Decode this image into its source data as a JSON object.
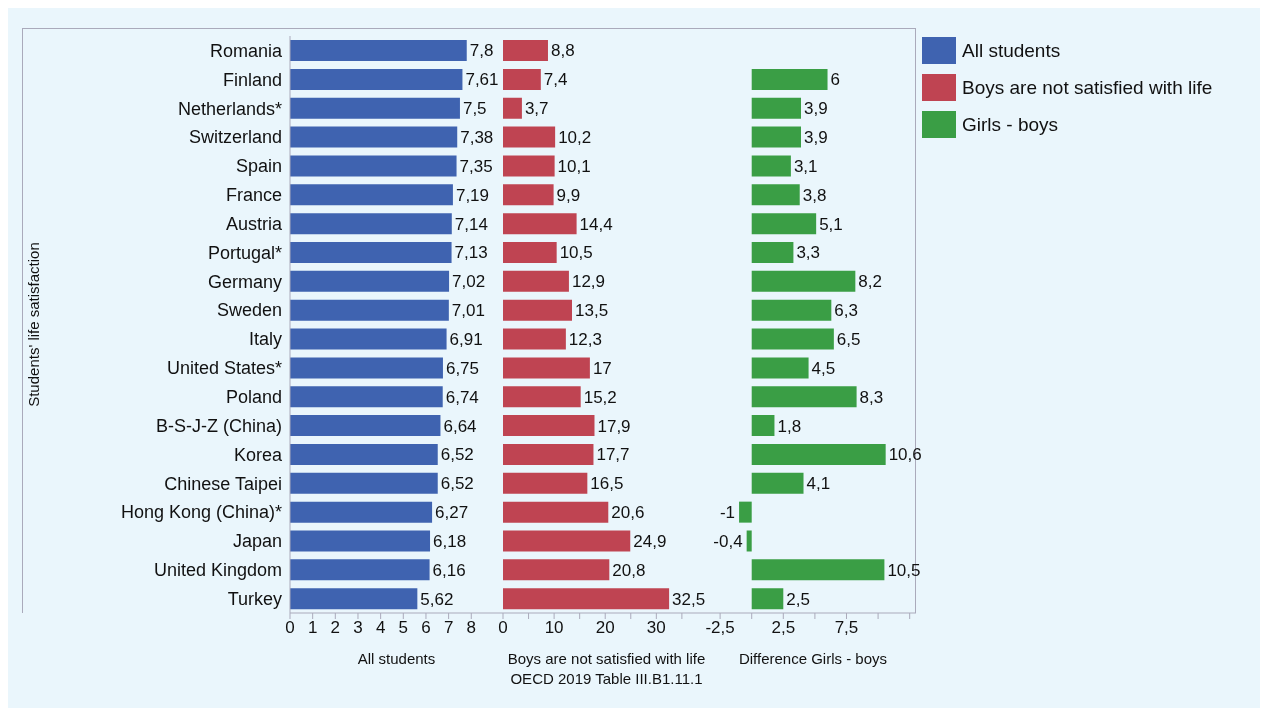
{
  "chart_data": [
    {
      "type": "bar",
      "orientation": "horizontal",
      "categories": [
        "Romania",
        "Finland",
        "Netherlands*",
        "Switzerland",
        "Spain",
        "France",
        "Austria",
        "Portugal*",
        "Germany",
        "Sweden",
        "Italy",
        "United States*",
        "Poland",
        "B-S-J-Z (China)",
        "Korea",
        "Chinese Taipei",
        "Hong Kong (China)*",
        "Japan",
        "United Kingdom",
        "Turkey"
      ],
      "series": [
        {
          "name": "All students",
          "color": "#3f63b0",
          "values": [
            7.8,
            7.61,
            7.5,
            7.38,
            7.35,
            7.19,
            7.14,
            7.13,
            7.02,
            7.01,
            6.91,
            6.75,
            6.74,
            6.64,
            6.52,
            6.52,
            6.27,
            6.18,
            6.16,
            5.62
          ],
          "value_labels": [
            "7,8",
            "7,61",
            "7,5",
            "7,38",
            "7,35",
            "7,19",
            "7,14",
            "7,13",
            "7,02",
            "7,01",
            "6,91",
            "6,75",
            "6,74",
            "6,64",
            "6,52",
            "6,52",
            "6,27",
            "6,18",
            "6,16",
            "5,62"
          ]
        }
      ],
      "xlim": [
        0,
        9.4
      ],
      "xticks": [
        0,
        1,
        2,
        3,
        4,
        5,
        6,
        7,
        8
      ],
      "xlabel": "All students",
      "ylabel": "Students' life satisfaction",
      "legend": "right"
    },
    {
      "type": "bar",
      "orientation": "horizontal",
      "series": [
        {
          "name": "Boys are not satisfied with life",
          "color": "#bf4452",
          "values": [
            8.8,
            7.4,
            3.7,
            10.2,
            10.1,
            9.9,
            14.4,
            10.5,
            12.9,
            13.5,
            12.3,
            17,
            15.2,
            17.9,
            17.7,
            16.5,
            20.6,
            24.9,
            20.8,
            32.5
          ],
          "value_labels": [
            "8,8",
            "7,4",
            "3,7",
            "10,2",
            "10,1",
            "9,9",
            "14,4",
            "10,5",
            "12,9",
            "13,5",
            "12,3",
            "17",
            "15,2",
            "17,9",
            "17,7",
            "16,5",
            "20,6",
            "24,9",
            "20,8",
            "32,5"
          ]
        }
      ],
      "xlim": [
        0,
        40.5
      ],
      "xticks": [
        0,
        {
          "value": 5,
          "label": null
        },
        10,
        {
          "value": 15,
          "label": null
        },
        20,
        {
          "value": 25,
          "label": null
        },
        30,
        {
          "value": 35,
          "label": null
        }
      ],
      "xlabel": "Boys are not satisfied with  life  OECD 2019 Table III.B1.11.1",
      "legend": "right",
      "tick_labels": "x"
    },
    {
      "type": "bar",
      "orientation": "horizontal",
      "series": [
        {
          "name": "Girls - boys",
          "color": "#3a9e45",
          "values": [
            null,
            6,
            3.9,
            3.9,
            3.1,
            3.8,
            5.1,
            3.3,
            8.2,
            6.3,
            6.5,
            4.5,
            8.3,
            1.8,
            10.6,
            4.1,
            -1,
            -0.4,
            10.5,
            2.5
          ],
          "value_labels": [
            null,
            "6",
            "3,9",
            "3,9",
            "3,1",
            "3,8",
            "5,1",
            "3,3",
            "8,2",
            "6,3",
            "6,5",
            "4,5",
            "8,3",
            "1,8",
            "10,6",
            "4,1",
            "-1",
            "-0,4",
            "10,5",
            "2,5"
          ]
        }
      ],
      "xlim": [
        -3.3,
        13
      ],
      "xticks": [
        {
          "value": -2.5,
          "label": "-2,5"
        },
        {
          "value": 0,
          "label": null
        },
        {
          "value": 2.5,
          "label": "2,5"
        },
        {
          "value": 5,
          "label": null
        },
        {
          "value": 7.5,
          "label": "7,5"
        },
        {
          "value": 10,
          "label": null
        },
        {
          "value": 12.5,
          "label": null
        }
      ],
      "xlabel": "Difference Girls - boys",
      "legend": "right",
      "tick_labels": "x"
    }
  ]
}
